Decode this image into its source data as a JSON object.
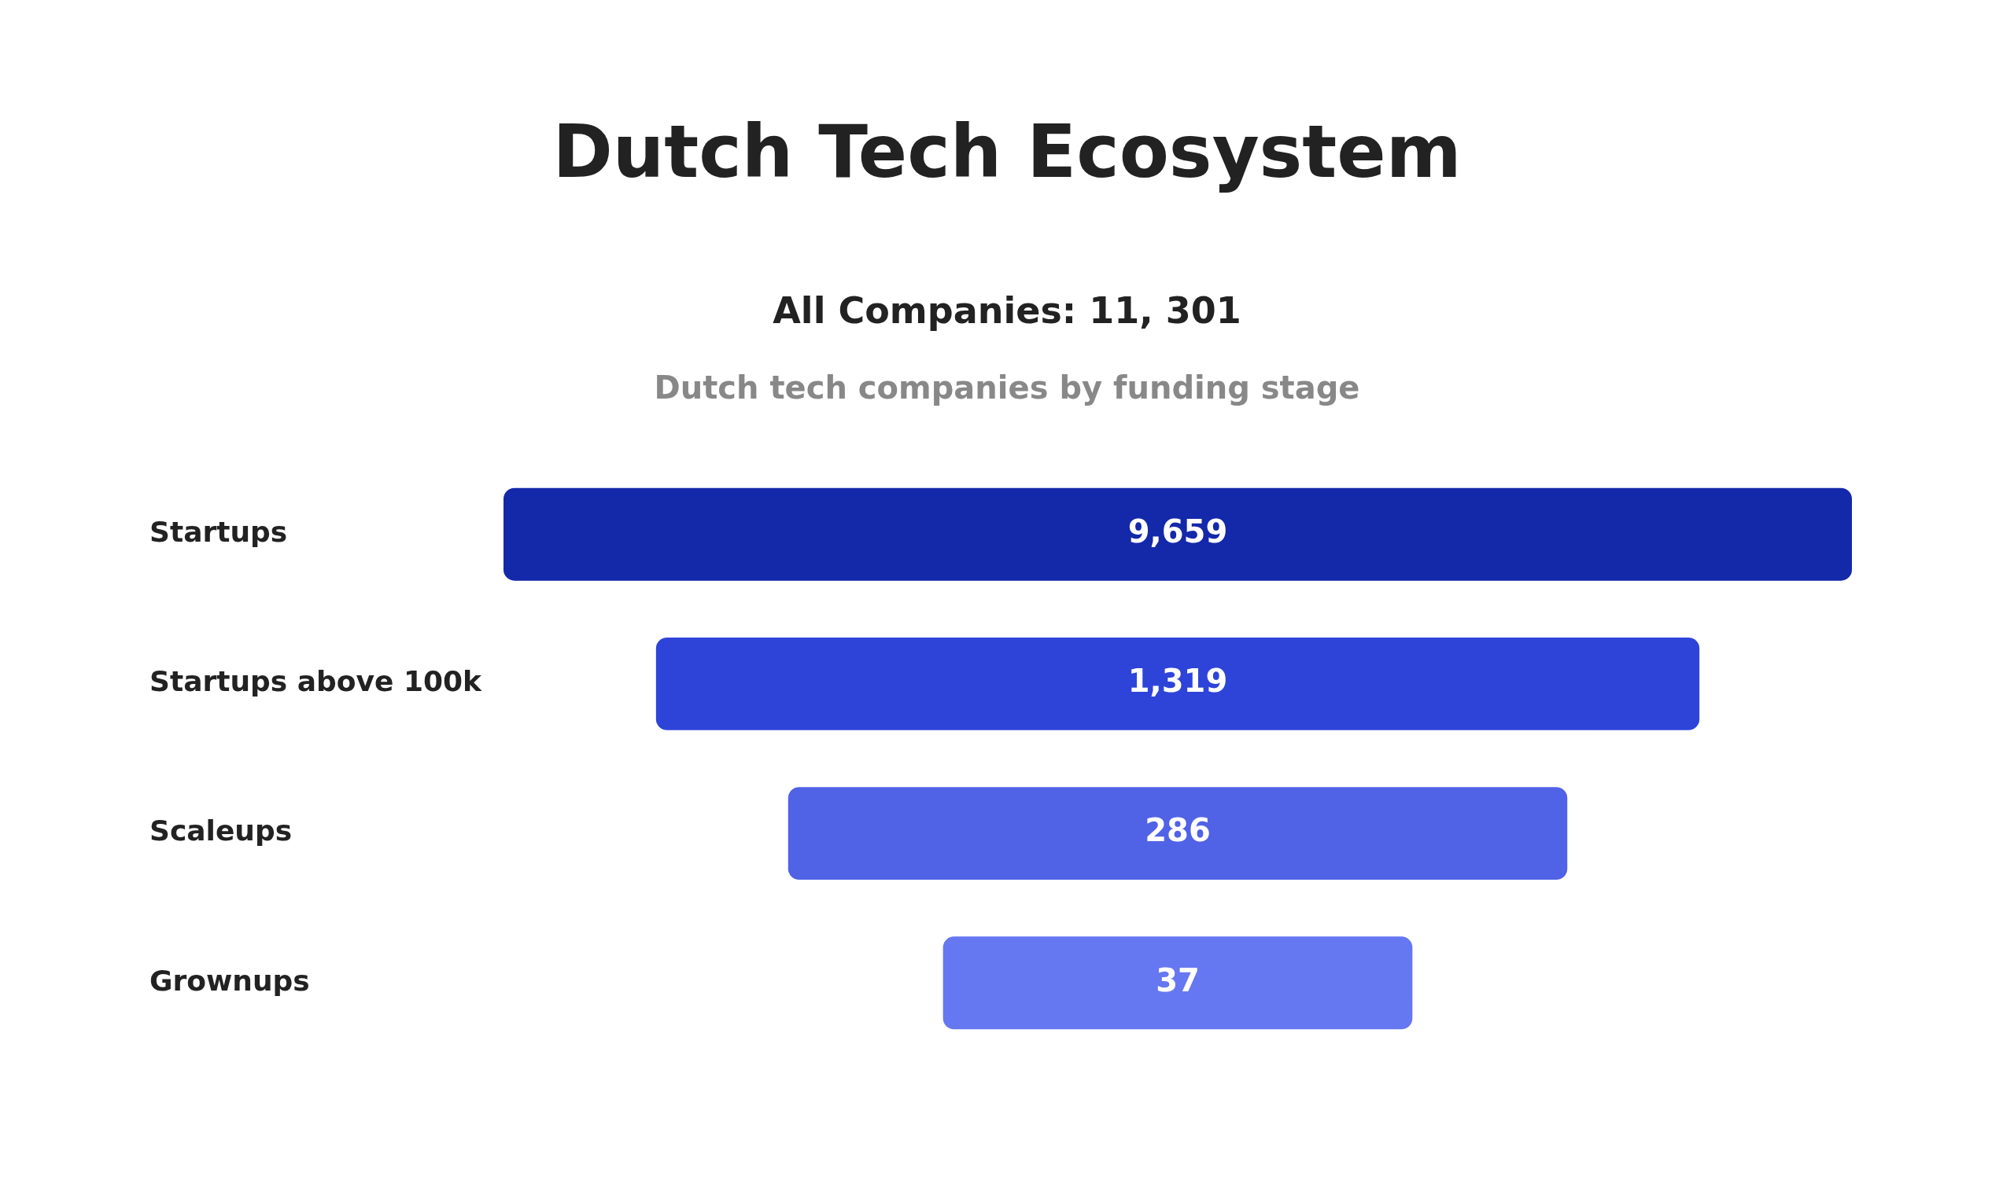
{
  "chart_data": {
    "type": "other",
    "title": "Dutch Tech Ecosystem",
    "subtitle": "All Companies: 11, 301",
    "annotations": [
      "Dutch tech companies by funding stage"
    ],
    "categories": [
      "Startups",
      "Startups above 100k",
      "Scaleups",
      "Grownups"
    ],
    "values": [
      9659,
      1319,
      286,
      37
    ],
    "value_labels": [
      "9,659",
      "1,319",
      "286",
      "37"
    ],
    "colors": [
      "#1428aa",
      "#2e44d9",
      "#5062e6",
      "#6677f2"
    ]
  }
}
